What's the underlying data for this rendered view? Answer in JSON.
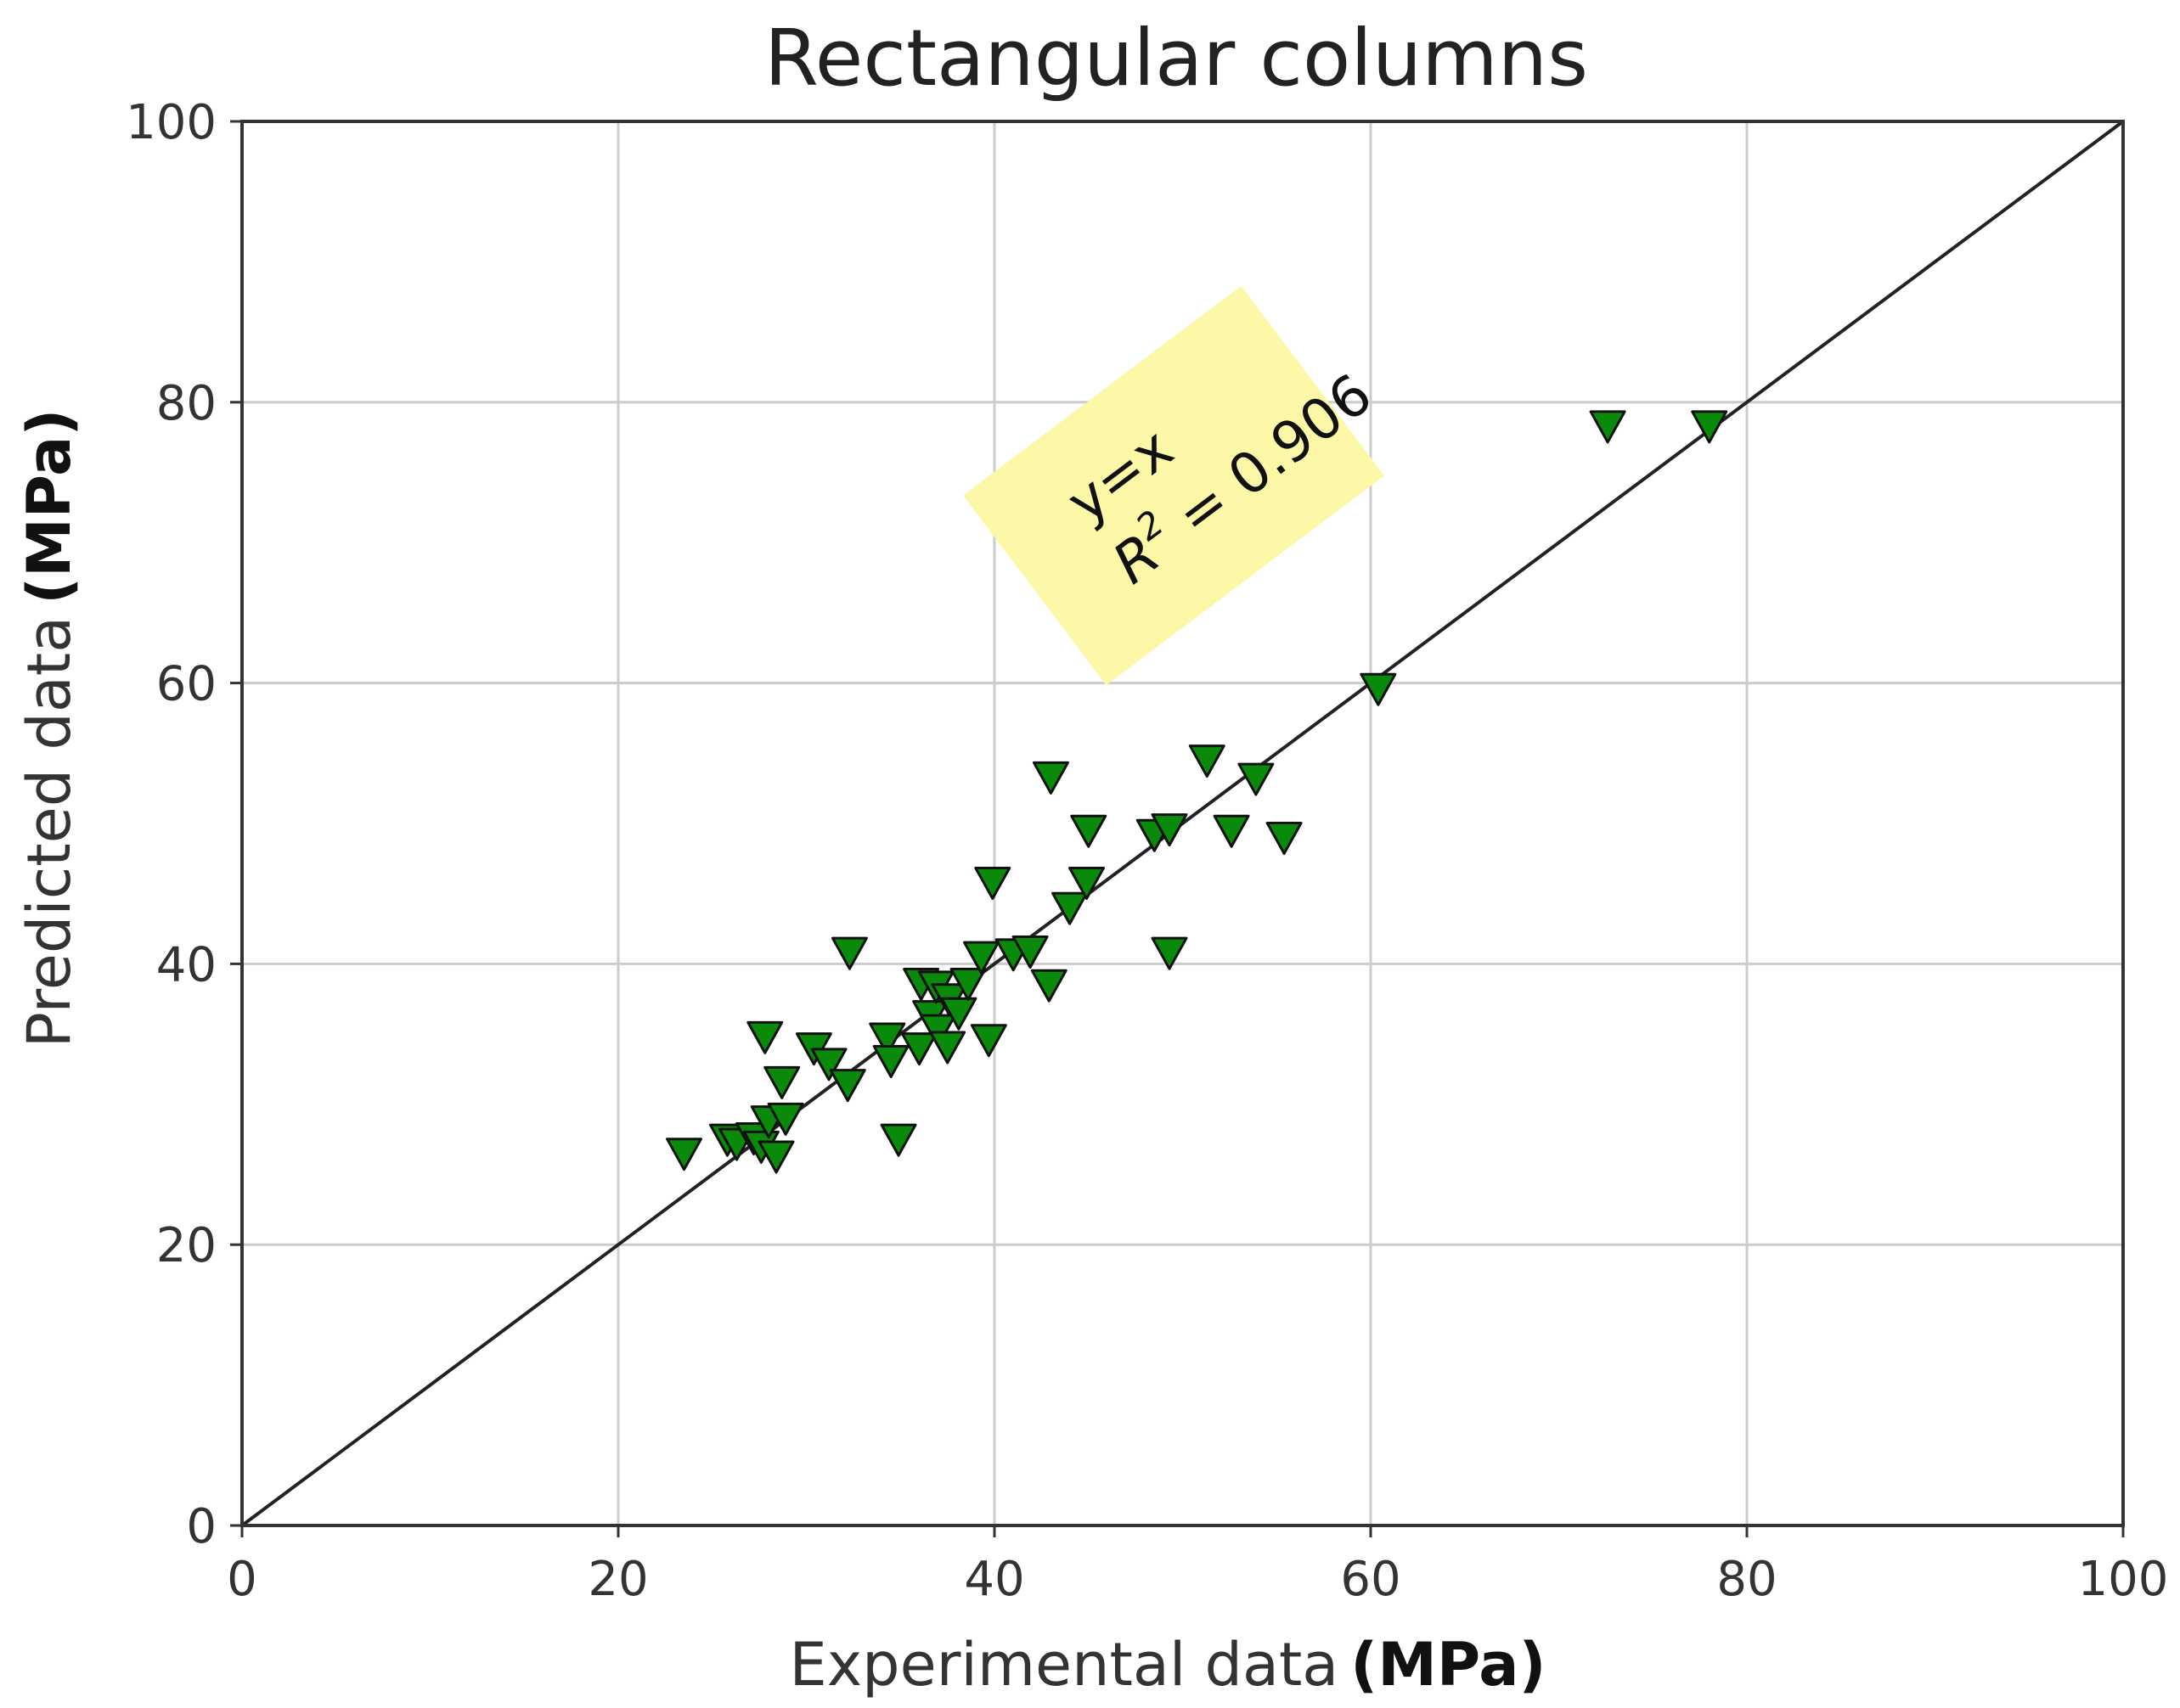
{
  "chart_data": {
    "type": "scatter",
    "title": "Rectangular columns",
    "xlabel": "Experimental data",
    "xlabel_unit": "(MPa)",
    "ylabel": "Predicted data",
    "ylabel_unit": "(MPa)",
    "xlim": [
      0,
      100
    ],
    "ylim": [
      0,
      100
    ],
    "xticks": [
      0,
      20,
      40,
      60,
      80,
      100
    ],
    "yticks": [
      0,
      20,
      40,
      60,
      80,
      100
    ],
    "grid": true,
    "reference_line": {
      "label": "y=x",
      "from": [
        0,
        0
      ],
      "to": [
        100,
        100
      ],
      "color": "#222222"
    },
    "annotation": {
      "line1": "y=x",
      "line2_prefix": "R",
      "line2_sup": "2",
      "line2_suffix": " = 0.906",
      "background": "#fdf7a8"
    },
    "marker": {
      "shape": "triangle-down",
      "fill": "#0a8a0a",
      "stroke": "#111111"
    },
    "points": [
      [
        23.5,
        26.5
      ],
      [
        25.8,
        27.5
      ],
      [
        26.3,
        27.2
      ],
      [
        27.2,
        27.6
      ],
      [
        27.6,
        27.0
      ],
      [
        28.0,
        28.8
      ],
      [
        28.4,
        26.3
      ],
      [
        28.9,
        29.0
      ],
      [
        28.7,
        31.6
      ],
      [
        27.8,
        34.8
      ],
      [
        30.4,
        34.0
      ],
      [
        31.2,
        32.9
      ],
      [
        32.2,
        31.4
      ],
      [
        32.3,
        40.8
      ],
      [
        34.3,
        34.7
      ],
      [
        34.5,
        33.1
      ],
      [
        34.9,
        27.5
      ],
      [
        36.0,
        34.0
      ],
      [
        36.1,
        38.6
      ],
      [
        36.6,
        36.3
      ],
      [
        36.9,
        38.4
      ],
      [
        37.0,
        35.3
      ],
      [
        37.6,
        37.5
      ],
      [
        37.5,
        34.1
      ],
      [
        38.1,
        36.5
      ],
      [
        38.6,
        38.6
      ],
      [
        39.3,
        40.5
      ],
      [
        39.7,
        34.6
      ],
      [
        39.9,
        45.8
      ],
      [
        41.0,
        40.7
      ],
      [
        41.9,
        40.9
      ],
      [
        42.9,
        38.5
      ],
      [
        43.0,
        53.3
      ],
      [
        44.0,
        44.0
      ],
      [
        44.9,
        45.8
      ],
      [
        45.0,
        49.5
      ],
      [
        48.5,
        49.2
      ],
      [
        49.3,
        49.6
      ],
      [
        49.3,
        40.8
      ],
      [
        51.3,
        54.5
      ],
      [
        52.6,
        49.5
      ],
      [
        53.9,
        53.2
      ],
      [
        55.4,
        49.0
      ],
      [
        60.4,
        59.6
      ],
      [
        72.6,
        78.3
      ],
      [
        78.0,
        78.3
      ]
    ]
  }
}
